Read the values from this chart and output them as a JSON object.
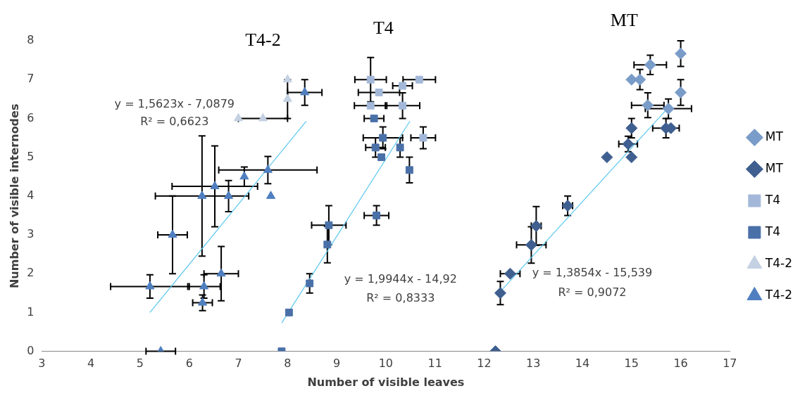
{
  "chart_data": {
    "type": "scatter",
    "xlabel": "Number of visible leaves",
    "ylabel": "Number of visible internodes",
    "xlim": [
      3,
      17
    ],
    "xticks": [
      3,
      4,
      5,
      6,
      7,
      8,
      9,
      10,
      11,
      12,
      13,
      14,
      15,
      16,
      17
    ],
    "ylim": [
      0,
      8
    ],
    "yticks": [
      0,
      1,
      2,
      3,
      4,
      5,
      6,
      7,
      8
    ],
    "grid": false,
    "legend": "right",
    "series": [
      {
        "name": "MT",
        "color": "#7a9cc9",
        "marker": "diamond",
        "x": [
          16,
          15.38,
          15,
          15.17,
          16,
          15.33,
          15.75
        ],
        "values": [
          7.67,
          7.38,
          7,
          7,
          6.67,
          6.34,
          6.25
        ],
        "errors": [
          0.33,
          0.25,
          null,
          0.26,
          0.33,
          0.32,
          0.25
        ],
        "xerrors": [
          null,
          0.33,
          null,
          null,
          null,
          0.33,
          0.47
        ]
      },
      {
        "name": "MT",
        "color": "#3e5f8f",
        "marker": "diamond",
        "x": [
          15.7,
          15.8,
          15,
          14.93,
          14.5,
          15,
          13.7,
          13.06,
          12.96,
          12.53,
          12.33,
          12.23
        ],
        "values": [
          5.75,
          5.75,
          5.75,
          5.34,
          5,
          5,
          3.75,
          3.23,
          2.74,
          2,
          1.5,
          0
        ],
        "errors": [
          0.25,
          null,
          0.25,
          0.2,
          null,
          null,
          0.25,
          0.5,
          0.47,
          null,
          0.3,
          null
        ],
        "xerrors": [
          0.27,
          null,
          null,
          0.19,
          null,
          null,
          0.1,
          0.1,
          0.3,
          0.2,
          null,
          null
        ]
      },
      {
        "name": "T4",
        "color": "#a3b8d9",
        "marker": "square",
        "x": [
          9.69,
          10.68,
          10.34,
          9.86,
          9.69,
          10.34,
          10.76
        ],
        "values": [
          7,
          7,
          6.84,
          6.67,
          6.33,
          6.33,
          5.5
        ],
        "errors": [
          0.57,
          null,
          null,
          null,
          null,
          0.33,
          0.28
        ],
        "xerrors": [
          0.32,
          0.33,
          0.2,
          0.42,
          0.33,
          0.35,
          0.25
        ]
      },
      {
        "name": "T4",
        "color": "#4a70a8",
        "marker": "square",
        "x": [
          9.76,
          9.94,
          9.79,
          10.29,
          9.91,
          10.48,
          9.81,
          8.84,
          8.81,
          8.45,
          8.03,
          7.88
        ],
        "values": [
          6,
          5.5,
          5.25,
          5.25,
          5,
          4.67,
          3.5,
          3.25,
          2.75,
          1.75,
          1,
          0
        ],
        "errors": [
          null,
          0.28,
          0.25,
          0.25,
          null,
          0.33,
          0.25,
          0.5,
          0.47,
          0.25,
          null,
          null
        ],
        "xerrors": [
          0.2,
          0.4,
          0.2,
          null,
          null,
          null,
          0.25,
          0.35,
          null,
          null,
          null,
          null
        ]
      },
      {
        "name": "T4-2",
        "color": "#c4d1e3",
        "marker": "triangle",
        "x": [
          8,
          8,
          7,
          7.5
        ],
        "values": [
          7,
          6.5,
          6,
          6
        ],
        "errors": [
          null,
          0.5,
          null,
          null
        ],
        "xerrors": [
          null,
          null,
          null,
          0.5
        ]
      },
      {
        "name": "T4-2",
        "color": "#4f7fc0",
        "marker": "triangle",
        "x": [
          8.35,
          7.6,
          7.12,
          6.52,
          6.26,
          6.8,
          7.66,
          5.66,
          6.65,
          5.2,
          6.3,
          6.27,
          5.42
        ],
        "values": [
          6.67,
          4.67,
          4.5,
          4.25,
          4,
          4,
          4,
          3,
          2,
          1.67,
          1.67,
          1.25,
          0
        ],
        "errors": [
          0.33,
          0.35,
          0.25,
          1.04,
          1.55,
          0.4,
          null,
          1,
          0.7,
          0.3,
          0.3,
          0.2,
          null
        ],
        "xerrors": [
          0.35,
          1,
          null,
          0.87,
          0.95,
          null,
          null,
          0.3,
          0.35,
          0.8,
          0.33,
          0.2,
          0.3
        ]
      },
      {
        "type": "line",
        "color": "#5bc8f0",
        "marker": "none",
        "x": [
          5.2,
          8.38
        ],
        "values": [
          1,
          5.93
        ]
      },
      {
        "type": "line",
        "color": "#5bc8f0",
        "marker": "none",
        "x": [
          7.88,
          10.49
        ],
        "values": [
          0.73,
          5.93
        ]
      },
      {
        "type": "line",
        "color": "#5bc8f0",
        "marker": "none",
        "x": [
          12.33,
          15.8
        ],
        "values": [
          1.54,
          6.35
        ]
      }
    ],
    "annotations": [
      "T4-2",
      "T4",
      "MT",
      "y = 1,5623x - 7,0879",
      "R² = 0,6623",
      "y = 1,9944x - 14,92",
      "R² = 0,8333",
      "y = 1,3854x - 15,539",
      "R² = 0,9072"
    ]
  }
}
